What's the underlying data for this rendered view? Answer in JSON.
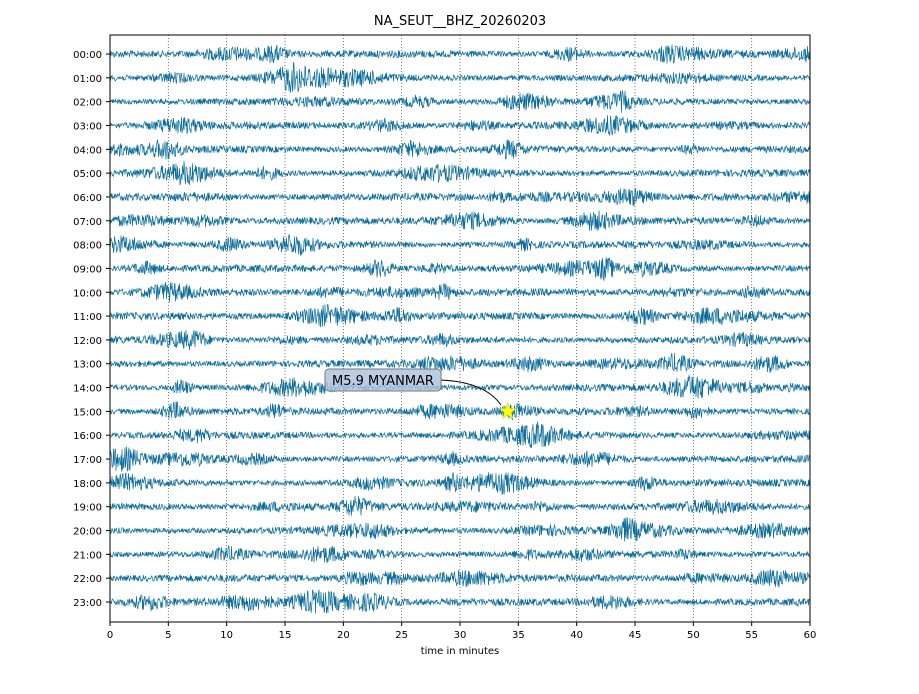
{
  "chart_data": {
    "type": "line",
    "title": "NA_SEUT__BHZ_20260203",
    "xlabel": "time in minutes",
    "ylabel": "",
    "xlim": [
      0,
      60
    ],
    "xticks": [
      0,
      5,
      10,
      15,
      20,
      25,
      30,
      35,
      40,
      45,
      50,
      55,
      60
    ],
    "grid": "vertical dotted every 5 minutes",
    "row_labels": [
      "00:00",
      "01:00",
      "02:00",
      "03:00",
      "04:00",
      "05:00",
      "06:00",
      "07:00",
      "08:00",
      "09:00",
      "10:00",
      "11:00",
      "12:00",
      "13:00",
      "14:00",
      "15:00",
      "16:00",
      "17:00",
      "18:00",
      "19:00",
      "20:00",
      "21:00",
      "22:00",
      "23:00"
    ],
    "series": [
      {
        "name": "BHZ seismic trace",
        "color": "#006699"
      }
    ],
    "annotations": [
      {
        "label": "M5.9 MYANMAR",
        "row": "15:00",
        "time_min": 34.1,
        "marker": "star",
        "marker_color": "#ffff00"
      }
    ]
  }
}
